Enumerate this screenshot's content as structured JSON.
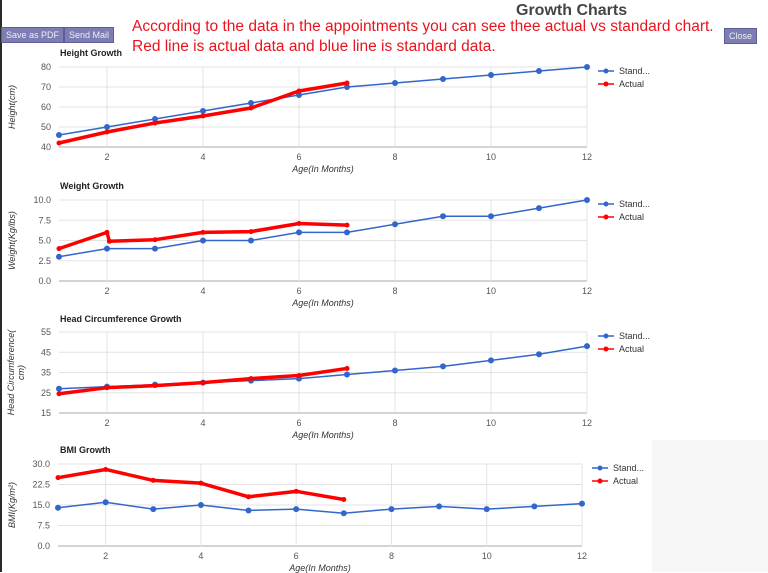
{
  "header": {
    "title": "Growth Charts",
    "annotation_line1": "According to the data in the appointments you can see thee actual vs standard chart.",
    "annotation_line2": "Red line is actual data and blue line is standard data.",
    "buttons": {
      "save_pdf": "Save as PDF",
      "send_mail": "Send Mail",
      "close": "Close"
    }
  },
  "colors": {
    "standard": "#3366cc",
    "actual": "#ff0000",
    "grid": "#e3e3e3",
    "annotation": "#e8141e",
    "button": "#7d7db4"
  },
  "legend": {
    "standard": "Stand...",
    "actual": "Actual"
  },
  "chart_data": [
    {
      "type": "line",
      "title": "Height Growth",
      "xlabel": "Age(In Months)",
      "ylabel": "Height(cm)",
      "xlim": [
        1,
        12
      ],
      "ylim": [
        40,
        80
      ],
      "xticks": [
        2,
        4,
        6,
        8,
        10,
        12
      ],
      "yticks": [
        40,
        50,
        60,
        70,
        80
      ],
      "ytick_labels": [
        "40",
        "50",
        "60",
        "70",
        "80"
      ],
      "grid": true,
      "legend_position": "right",
      "series": [
        {
          "name": "Standard",
          "x": [
            1,
            2,
            3,
            4,
            5,
            6,
            7,
            8,
            9,
            10,
            11,
            12
          ],
          "values": [
            46,
            50,
            54,
            58,
            62,
            66,
            70,
            72,
            74,
            76,
            78,
            80
          ]
        },
        {
          "name": "Actual",
          "x": [
            1,
            2,
            3,
            4,
            5,
            6,
            7
          ],
          "values": [
            42,
            47.5,
            52,
            55.5,
            59.5,
            68,
            72
          ]
        }
      ]
    },
    {
      "type": "line",
      "title": "Weight Growth",
      "xlabel": "Age(In Months)",
      "ylabel": "Weight(Kg/lbs)",
      "xlim": [
        1,
        12
      ],
      "ylim": [
        0,
        10
      ],
      "xticks": [
        2,
        4,
        6,
        8,
        10,
        12
      ],
      "yticks": [
        0,
        2.5,
        5,
        7.5,
        10
      ],
      "ytick_labels": [
        "0.0",
        "2.5",
        "5.0",
        "7.5",
        "10.0"
      ],
      "grid": true,
      "legend_position": "right",
      "series": [
        {
          "name": "Standard",
          "x": [
            1,
            2,
            3,
            4,
            5,
            6,
            7,
            8,
            9,
            10,
            11,
            12
          ],
          "values": [
            3,
            4,
            4,
            5,
            5,
            6,
            6,
            7,
            8,
            8,
            9,
            10
          ]
        },
        {
          "name": "Actual",
          "x": [
            1,
            2,
            2.05,
            3,
            4,
            5,
            6,
            7
          ],
          "values": [
            4,
            6,
            4.9,
            5.1,
            6,
            6.1,
            7.1,
            6.9
          ]
        }
      ]
    },
    {
      "type": "line",
      "title": "Head Circumference Growth",
      "xlabel": "Age(In Months)",
      "ylabel": "Head Circumference( cm)",
      "xlim": [
        1,
        12
      ],
      "ylim": [
        15,
        55
      ],
      "xticks": [
        2,
        4,
        6,
        8,
        10,
        12
      ],
      "yticks": [
        15,
        25,
        35,
        45,
        55
      ],
      "ytick_labels": [
        "15",
        "25",
        "35",
        "45",
        "55"
      ],
      "grid": true,
      "legend_position": "right",
      "series": [
        {
          "name": "Standard",
          "x": [
            1,
            2,
            3,
            4,
            5,
            6,
            7,
            8,
            9,
            10,
            11,
            12
          ],
          "values": [
            27,
            28,
            29,
            30,
            31,
            32,
            34,
            36,
            38,
            41,
            44,
            48
          ]
        },
        {
          "name": "Actual",
          "x": [
            1,
            2,
            3,
            4,
            5,
            6,
            7
          ],
          "values": [
            24.5,
            27.5,
            28.5,
            30,
            32,
            33.5,
            37
          ]
        }
      ]
    },
    {
      "type": "line",
      "title": "BMI Growth",
      "xlabel": "Age(In Months)",
      "ylabel": "BMI(Kg/m²)",
      "xlim": [
        1,
        12
      ],
      "ylim": [
        0,
        30
      ],
      "xticks": [
        2,
        4,
        6,
        8,
        10,
        12
      ],
      "yticks": [
        0,
        7.5,
        15,
        22.5,
        30
      ],
      "ytick_labels": [
        "0.0",
        "7.5",
        "15.0",
        "22.5",
        "30.0"
      ],
      "grid": true,
      "legend_position": "right",
      "series": [
        {
          "name": "Standard",
          "x": [
            1,
            2,
            3,
            4,
            5,
            6,
            7,
            8,
            9,
            10,
            11,
            12
          ],
          "values": [
            14,
            16,
            13.5,
            15,
            13,
            13.5,
            12,
            13.5,
            14.5,
            13.5,
            14.5,
            15.5
          ]
        },
        {
          "name": "Actual",
          "x": [
            1,
            2,
            3,
            4,
            5,
            6,
            7
          ],
          "values": [
            25,
            28,
            24,
            23,
            18,
            20,
            17
          ]
        }
      ]
    }
  ]
}
